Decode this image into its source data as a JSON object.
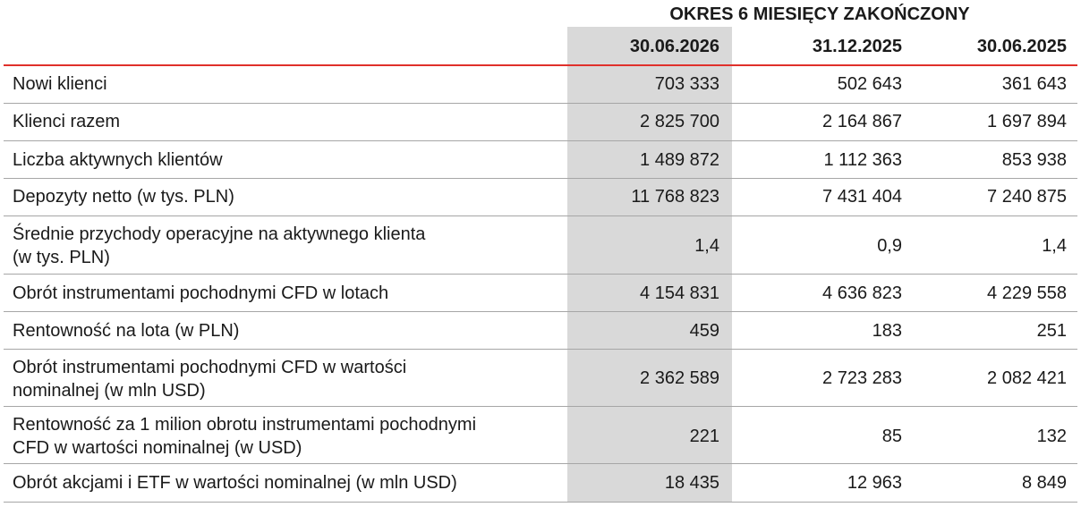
{
  "header": {
    "period_title": "OKRES 6 MIESIĘCY ZAKOŃCZONY",
    "columns": [
      "30.06.2026",
      "31.12.2025",
      "30.06.2025"
    ]
  },
  "rows": [
    {
      "label": "Nowi klienci",
      "values": [
        "703 333",
        "502 643",
        "361 643"
      ]
    },
    {
      "label": "Klienci razem",
      "values": [
        "2 825 700",
        "2 164 867",
        "1 697 894"
      ]
    },
    {
      "label": "Liczba aktywnych klientów",
      "values": [
        "1 489 872",
        "1 112 363",
        "853 938"
      ]
    },
    {
      "label": "Depozyty netto (w tys. PLN)",
      "values": [
        "11 768 823",
        "7 431 404",
        "7 240 875"
      ]
    },
    {
      "label_line1": "Średnie przychody operacyjne na aktywnego klienta",
      "label_line2": "(w tys. PLN)",
      "values": [
        "1,4",
        "0,9",
        "1,4"
      ]
    },
    {
      "label": "Obrót instrumentami pochodnymi CFD w lotach",
      "values": [
        "4 154 831",
        "4 636 823",
        "4 229 558"
      ]
    },
    {
      "label": "Rentowność na lota (w PLN)",
      "values": [
        "459",
        "183",
        "251"
      ]
    },
    {
      "label_line1": "Obrót instrumentami pochodnymi CFD w wartości",
      "label_line2": "nominalnej (w mln USD)",
      "values": [
        "2 362 589",
        "2 723 283",
        "2 082 421"
      ]
    },
    {
      "label_line1": "Rentowność za 1 milion obrotu instrumentami pochodnymi",
      "label_line2": "CFD w wartości nominalnej (w USD)",
      "values": [
        "221",
        "85",
        "132"
      ]
    },
    {
      "label": "Obrót akcjami i ETF w wartości nominalnej (w mln USD)",
      "values": [
        "18 435",
        "12 963",
        "8 849"
      ]
    }
  ],
  "colors": {
    "accent_line": "#e0302b",
    "highlight_column": "#d9d9d9",
    "row_divider": "#a6a6a6"
  }
}
